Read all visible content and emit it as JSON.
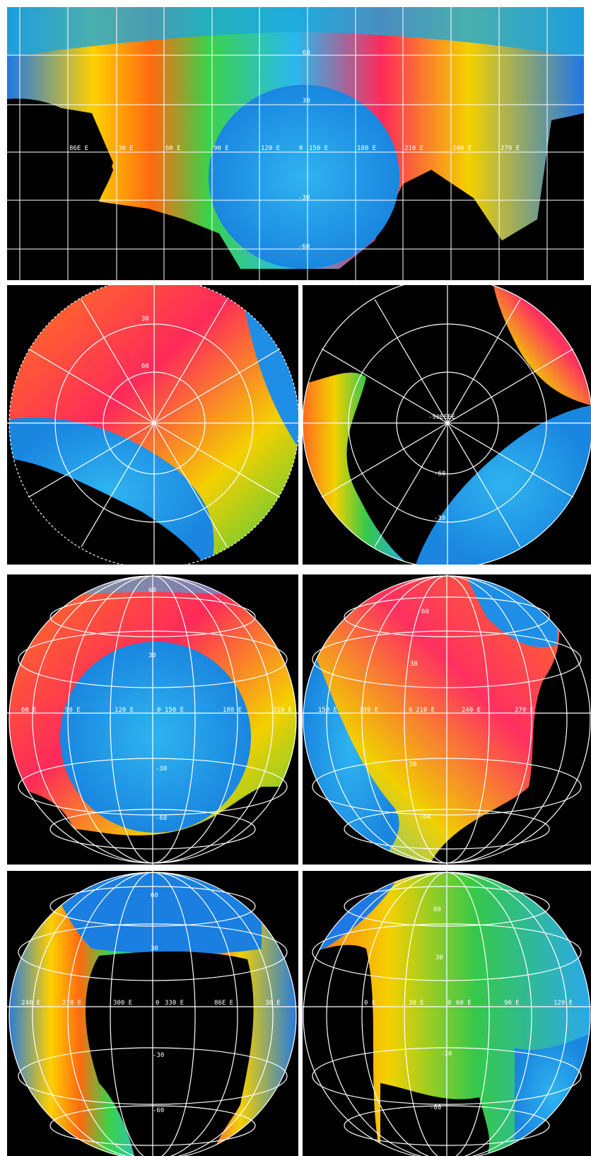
{
  "panels": [
    {
      "id": "cyl",
      "labels": [
        "60",
        "30",
        "86E E",
        "30 E",
        "60 E",
        "90 E",
        "120 E",
        "0",
        "150 E",
        "180 E",
        "210 E",
        "240 E",
        "270 E",
        "-30",
        "-60"
      ]
    },
    {
      "id": "north-polar",
      "labels": [
        "30",
        "60"
      ]
    },
    {
      "id": "south-polar",
      "labels": [
        "-90EEEE",
        "-60",
        "-30"
      ]
    },
    {
      "id": "ortho-1",
      "labels": [
        "60",
        "30",
        "60 E",
        "90 E",
        "120 E",
        "0",
        "150 E",
        "180 E",
        "210 E",
        "-30",
        "-60"
      ]
    },
    {
      "id": "ortho-2",
      "labels": [
        "60",
        "30",
        "150 E",
        "180 E",
        "0",
        "210 E",
        "240 E",
        "270 E",
        "-30",
        "-60"
      ]
    },
    {
      "id": "ortho-3",
      "labels": [
        "60",
        "30",
        "240 E",
        "270 E",
        "300 E",
        "0",
        "330 E",
        "86E E",
        "30 E",
        "-30",
        "-60"
      ]
    },
    {
      "id": "ortho-4",
      "labels": [
        "60",
        "30",
        "0 E",
        "30 E",
        "0",
        "60 E",
        "90 E",
        "120 E",
        "-30",
        "-60"
      ]
    }
  ],
  "colors": {
    "background": "#000000",
    "grid": "#ffffff",
    "frame": "#ffffff"
  }
}
